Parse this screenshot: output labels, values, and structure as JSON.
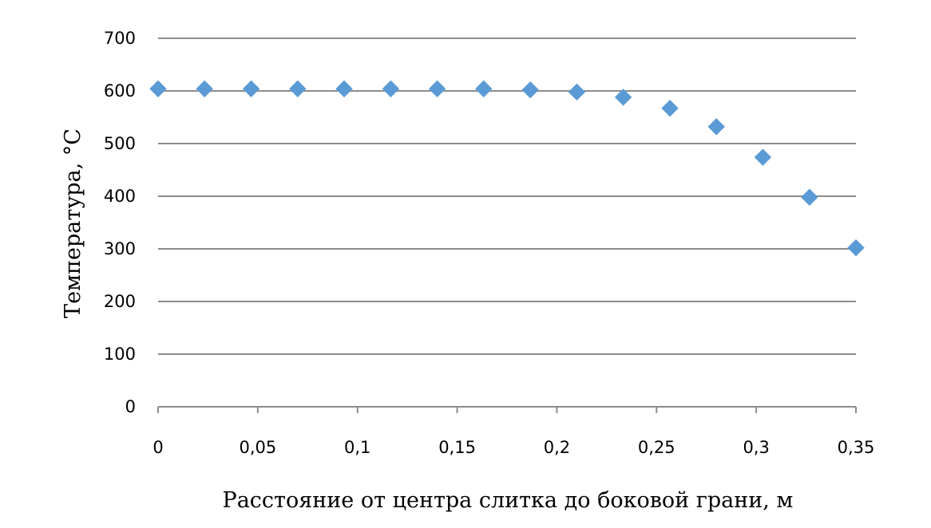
{
  "chart_data": {
    "type": "scatter",
    "xlabel": "Расстояние от центра слитка до боковой грани, м",
    "ylabel": "Температура, °С",
    "xlim": [
      0,
      0.35
    ],
    "ylim": [
      0,
      700
    ],
    "x_ticks": [
      "0",
      "0,05",
      "0,1",
      "0,15",
      "0,2",
      "0,25",
      "0,3",
      "0,35"
    ],
    "x_tick_values": [
      0,
      0.05,
      0.1,
      0.15,
      0.2,
      0.25,
      0.3,
      0.35
    ],
    "y_ticks": [
      "0",
      "100",
      "200",
      "300",
      "400",
      "500",
      "600",
      "700"
    ],
    "y_tick_values": [
      0,
      100,
      200,
      300,
      400,
      500,
      600,
      700
    ],
    "grid": "horizontal",
    "marker": "diamond",
    "marker_color": "#5b9bd5",
    "points": [
      {
        "x": 0.0,
        "y": 604
      },
      {
        "x": 0.0233,
        "y": 604
      },
      {
        "x": 0.0467,
        "y": 604
      },
      {
        "x": 0.07,
        "y": 604
      },
      {
        "x": 0.0933,
        "y": 604
      },
      {
        "x": 0.1167,
        "y": 604
      },
      {
        "x": 0.14,
        "y": 604
      },
      {
        "x": 0.1633,
        "y": 604
      },
      {
        "x": 0.1867,
        "y": 602
      },
      {
        "x": 0.21,
        "y": 598
      },
      {
        "x": 0.2333,
        "y": 588
      },
      {
        "x": 0.2567,
        "y": 567
      },
      {
        "x": 0.28,
        "y": 532
      },
      {
        "x": 0.3033,
        "y": 474
      },
      {
        "x": 0.3267,
        "y": 398
      },
      {
        "x": 0.35,
        "y": 302
      }
    ]
  }
}
